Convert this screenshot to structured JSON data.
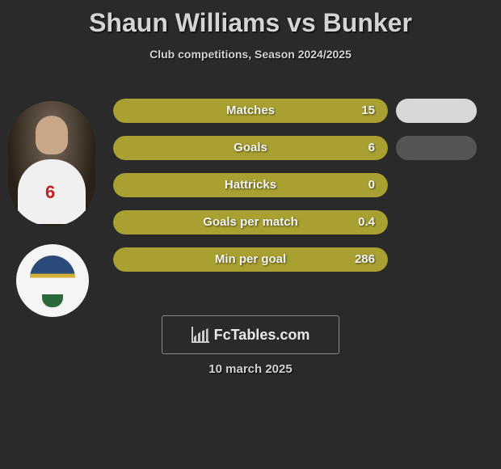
{
  "title": "Shaun Williams vs Bunker",
  "subtitle": "Club competitions, Season 2024/2025",
  "date": "10 march 2025",
  "logo_text": "FcTables.com",
  "player_number": "6",
  "colors": {
    "bar_fill": "#a8a030",
    "bar_track": "#3a3a3a",
    "pill1": "#d8d8d8",
    "pill2": "#555555",
    "background": "#2a2a2a",
    "text": "#f5f5f5"
  },
  "bars": [
    {
      "label": "Matches",
      "value": "15",
      "fill_pct": 100,
      "pill_color": "#d8d8d8"
    },
    {
      "label": "Goals",
      "value": "6",
      "fill_pct": 100,
      "pill_color": "#555555"
    },
    {
      "label": "Hattricks",
      "value": "0",
      "fill_pct": 100,
      "pill_color": null
    },
    {
      "label": "Goals per match",
      "value": "0.4",
      "fill_pct": 100,
      "pill_color": null
    },
    {
      "label": "Min per goal",
      "value": "286",
      "fill_pct": 100,
      "pill_color": null
    }
  ]
}
